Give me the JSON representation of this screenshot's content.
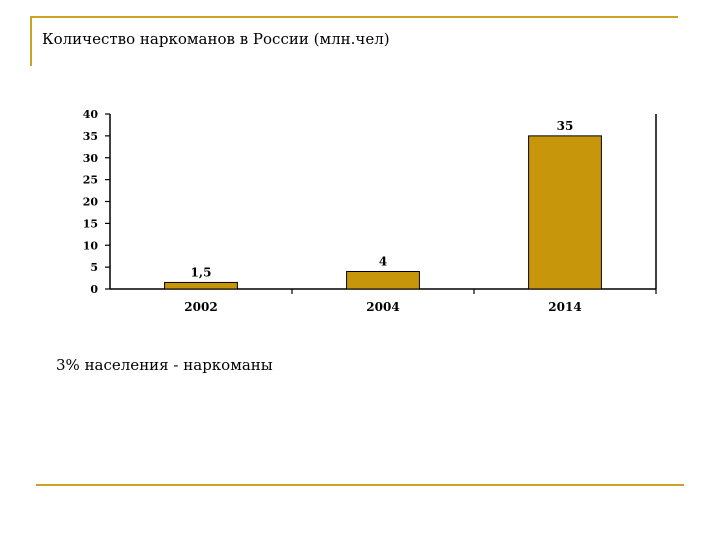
{
  "slide": {
    "title": "Количество наркоманов в России (млн.чел)",
    "note": "3% населения - наркоманы"
  },
  "colors": {
    "frame": "#c9a227",
    "bar": "#c8960a",
    "bar_stroke": "#000000",
    "axis": "#000000"
  },
  "chart_data": {
    "type": "bar",
    "title": "Количество наркоманов в России (млн.чел)",
    "xlabel": "",
    "ylabel": "",
    "categories": [
      "2002",
      "2004",
      "2014"
    ],
    "values": [
      1.5,
      4,
      35
    ],
    "data_labels": [
      "1,5",
      "4",
      "35"
    ],
    "ylim": [
      0,
      40
    ],
    "yticks": [
      0,
      5,
      10,
      15,
      20,
      25,
      30,
      35,
      40
    ],
    "grid": false,
    "legend": "none"
  }
}
